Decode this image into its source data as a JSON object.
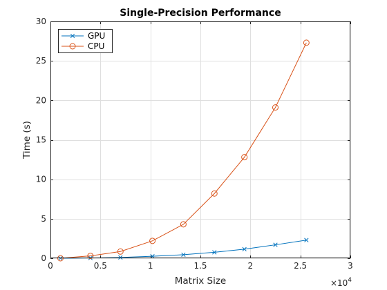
{
  "chart_data": {
    "type": "line",
    "title": "Single-Precision Performance",
    "xlabel": "Matrix Size",
    "ylabel": "Time (s)",
    "x_exponent_label": "×10",
    "x_exponent_power": "4",
    "x_multiplier": 10000,
    "xlim": [
      0,
      3
    ],
    "ylim": [
      0,
      30
    ],
    "xticks": [
      0,
      0.5,
      1,
      1.5,
      2,
      2.5,
      3
    ],
    "xtick_labels": [
      "0",
      "0.5",
      "1",
      "1.5",
      "2",
      "2.5",
      "3"
    ],
    "yticks": [
      0,
      5,
      10,
      15,
      20,
      25,
      30
    ],
    "ytick_labels": [
      "0",
      "5",
      "10",
      "15",
      "20",
      "25",
      "30"
    ],
    "grid": true,
    "legend_position": "top-left",
    "series": [
      {
        "name": "GPU",
        "color": "#0072BD",
        "marker": "x",
        "x": [
          0.1,
          0.4,
          0.7,
          1.02,
          1.33,
          1.64,
          1.94,
          2.25,
          2.56
        ],
        "y": [
          0.0,
          0.03,
          0.1,
          0.25,
          0.45,
          0.75,
          1.15,
          1.7,
          2.3
        ]
      },
      {
        "name": "CPU",
        "color": "#D95319",
        "marker": "o",
        "x": [
          0.1,
          0.4,
          0.7,
          1.02,
          1.33,
          1.64,
          1.94,
          2.25,
          2.56
        ],
        "y": [
          0.0,
          0.3,
          0.85,
          2.2,
          4.3,
          8.2,
          12.8,
          19.1,
          27.3
        ]
      }
    ]
  }
}
